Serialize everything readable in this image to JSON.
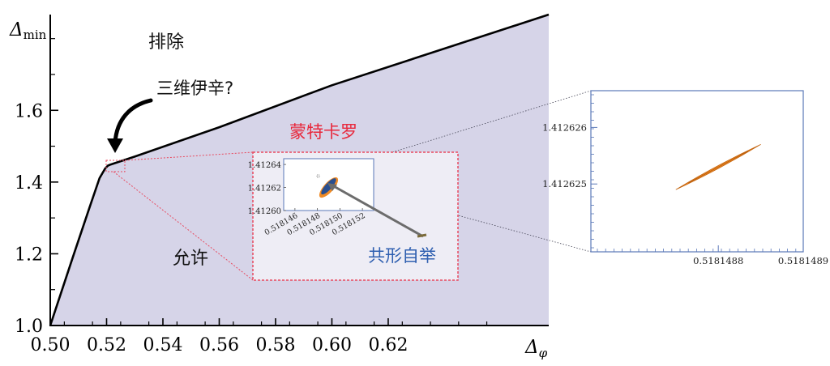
{
  "chart_data": [
    {
      "type": "area",
      "title": "",
      "xlabel": "Δ_φ",
      "ylabel": "Δ_min",
      "axis_labels": {
        "x_main": "Δ",
        "x_sub": "φ",
        "y_main": "Δ",
        "y_sub": "min"
      },
      "xlim": [
        0.5,
        0.677
      ],
      "ylim": [
        1.0,
        1.867
      ],
      "xticks": [
        "0.50",
        "0.52",
        "0.54",
        "0.56",
        "0.58",
        "0.60",
        "0.62"
      ],
      "yticks": [
        "1.0",
        "1.2",
        "1.4",
        "1.6"
      ],
      "boundary": {
        "x": [
          0.5,
          0.508,
          0.514,
          0.5175,
          0.5195,
          0.5205,
          0.5215,
          0.53,
          0.56,
          0.6,
          0.677
        ],
        "y": [
          1.0,
          1.19,
          1.33,
          1.411,
          1.438,
          1.446,
          1.449,
          1.471,
          1.553,
          1.67,
          1.867
        ]
      },
      "fill_color": "#d6d4e8",
      "line_color": "#000000",
      "region_labels": {
        "excluded": "排除",
        "allowed": "允许"
      },
      "annotations": {
        "ising": "三维伊辛?",
        "monte_carlo": "蒙特卡罗",
        "bootstrap": "共形自举"
      },
      "colors": {
        "monte_carlo": "#e8283c",
        "bootstrap": "#2f5fb0",
        "island": "#f08a24",
        "island_inner": "#2a4f8f",
        "zoom_frame": "#5a78b8"
      }
    },
    {
      "type": "scatter",
      "title": "inset",
      "xlim": [
        0.518145,
        0.518153
      ],
      "ylim": [
        1.4126,
        1.412645
      ],
      "xticks": [
        "0.518146",
        "0.518148",
        "0.518150",
        "0.518152"
      ],
      "yticks": [
        "1.41264",
        "1.41262",
        "1.41260"
      ],
      "island": {
        "x": [
          0.518149
        ],
        "y": [
          1.41262
        ]
      },
      "background": "#eeedf5"
    },
    {
      "type": "scatter",
      "title": "zoom",
      "xlim": [
        0.51814865,
        0.5181489
      ],
      "ylim": [
        1.4126238,
        1.41262665
      ],
      "xticks": [
        "0.5181488",
        "0.5181489"
      ],
      "yticks": [
        "1.412626",
        "1.412625"
      ],
      "island": {
        "x": [
          0.51814875,
          0.51814885
        ],
        "y": [
          1.4126249,
          1.4126257
        ]
      }
    }
  ]
}
